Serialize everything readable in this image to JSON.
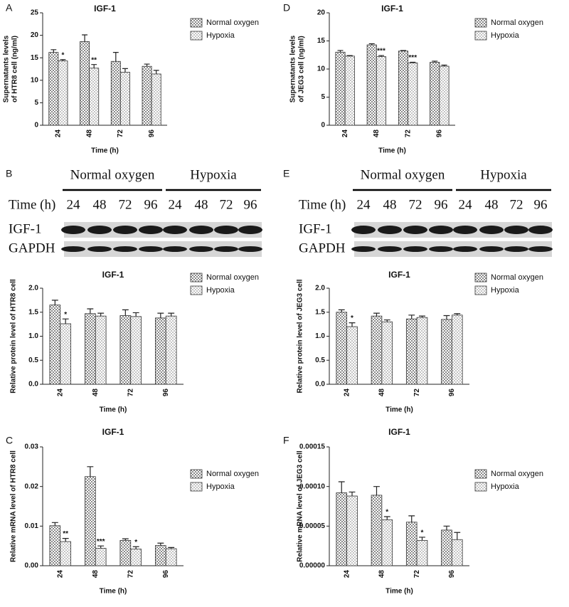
{
  "chart_data": [
    {
      "type": "bar",
      "label": "A",
      "title": "IGF-1",
      "ylabel": [
        "Supernatants levels",
        "of HTR8 cell (ng/ml)"
      ],
      "xlabel": "Time (h)",
      "categories": [
        "24",
        "48",
        "72",
        "96"
      ],
      "ylim": [
        0,
        25
      ],
      "yticks": [
        0,
        5,
        10,
        15,
        20,
        25
      ],
      "series": [
        {
          "name": "Normal oxygen",
          "color": "#8a8a8a",
          "values": [
            16.2,
            18.6,
            14.2,
            13.1
          ],
          "errors": [
            0.6,
            1.5,
            2.0,
            0.5
          ],
          "markers": [
            null,
            null,
            null,
            null
          ]
        },
        {
          "name": "Hypoxia",
          "color": "#c4c4c4",
          "values": [
            14.3,
            12.7,
            11.8,
            11.4
          ],
          "errors": [
            0.3,
            0.8,
            0.8,
            0.8
          ],
          "markers": [
            "*",
            "**",
            null,
            null
          ]
        }
      ]
    },
    {
      "type": "bar",
      "label": "D",
      "title": "IGF-1",
      "ylabel": [
        "Supernatants levels",
        "of JEG3 cell (ng/ml)"
      ],
      "xlabel": "Time (h)",
      "categories": [
        "24",
        "48",
        "72",
        "96"
      ],
      "ylim": [
        0,
        20
      ],
      "yticks": [
        0,
        5,
        10,
        15,
        20
      ],
      "series": [
        {
          "name": "Normal oxygen",
          "color": "#8a8a8a",
          "values": [
            13.0,
            14.3,
            13.2,
            11.2
          ],
          "errors": [
            0.3,
            0.2,
            0.1,
            0.2
          ],
          "markers": [
            null,
            null,
            null,
            null
          ]
        },
        {
          "name": "Hypoxia",
          "color": "#c4c4c4",
          "values": [
            12.3,
            12.2,
            11.1,
            10.5
          ],
          "errors": [
            0.1,
            0.2,
            0.1,
            0.2
          ],
          "markers": [
            null,
            "***",
            "***",
            null
          ]
        }
      ]
    },
    {
      "type": "bar",
      "title": "IGF-1",
      "ylabel": [
        "Relative protein level of HTR8 cell"
      ],
      "xlabel": "Time (h)",
      "categories": [
        "24",
        "48",
        "72",
        "96"
      ],
      "ylim": [
        0,
        2
      ],
      "yticks": [
        {
          "value": 0,
          "label": "0.0"
        },
        0.5,
        {
          "value": 1,
          "label": "1.0"
        },
        1.5,
        {
          "value": 2,
          "label": "2.0"
        }
      ],
      "series": [
        {
          "name": "Normal oxygen",
          "color": "#8a8a8a",
          "values": [
            1.65,
            1.47,
            1.43,
            1.38
          ],
          "errors": [
            0.1,
            0.1,
            0.12,
            0.1
          ],
          "markers": [
            null,
            null,
            null,
            null
          ]
        },
        {
          "name": "Hypoxia",
          "color": "#c4c4c4",
          "values": [
            1.26,
            1.42,
            1.41,
            1.42
          ],
          "errors": [
            0.1,
            0.06,
            0.08,
            0.06
          ],
          "markers": [
            "*",
            null,
            null,
            null
          ]
        }
      ]
    },
    {
      "type": "bar",
      "title": "IGF-1",
      "ylabel": [
        "Relative protein level of JEG3 cell"
      ],
      "xlabel": "Time (h)",
      "categories": [
        "24",
        "48",
        "72",
        "96"
      ],
      "ylim": [
        0,
        2
      ],
      "yticks": [
        {
          "value": 0,
          "label": "0.0"
        },
        0.5,
        {
          "value": 1,
          "label": "1.0"
        },
        1.5,
        {
          "value": 2,
          "label": "2.0"
        }
      ],
      "series": [
        {
          "name": "Normal oxygen",
          "color": "#8a8a8a",
          "values": [
            1.5,
            1.42,
            1.36,
            1.35
          ],
          "errors": [
            0.05,
            0.06,
            0.08,
            0.08
          ],
          "markers": [
            null,
            null,
            null,
            null
          ]
        },
        {
          "name": "Hypoxia",
          "color": "#c4c4c4",
          "values": [
            1.2,
            1.3,
            1.39,
            1.44
          ],
          "errors": [
            0.08,
            0.04,
            0.03,
            0.03
          ],
          "markers": [
            "*",
            null,
            null,
            null
          ]
        }
      ]
    },
    {
      "type": "bar",
      "label": "C",
      "title": "IGF-1",
      "ylabel": [
        "Relative mRNA level of HTR8 cell"
      ],
      "xlabel": "Time (h)",
      "categories": [
        "24",
        "48",
        "72",
        "96"
      ],
      "ylim": [
        0,
        0.03
      ],
      "yticks": [
        {
          "value": 0,
          "label": "0.00"
        },
        0.01,
        0.02,
        0.03
      ],
      "series": [
        {
          "name": "Normal oxygen",
          "color": "#8a8a8a",
          "values": [
            0.0101,
            0.0225,
            0.0064,
            0.0051
          ],
          "errors": [
            0.0008,
            0.0025,
            0.0004,
            0.0006
          ],
          "markers": [
            null,
            null,
            null,
            null
          ]
        },
        {
          "name": "Hypoxia",
          "color": "#c4c4c4",
          "values": [
            0.0061,
            0.0044,
            0.0042,
            0.0043
          ],
          "errors": [
            0.0008,
            0.0006,
            0.0006,
            0.0003
          ],
          "markers": [
            "**",
            "***",
            "*",
            null
          ]
        }
      ]
    },
    {
      "type": "bar",
      "label": "F",
      "title": "IGF-1",
      "ylabel": [
        "Relative mRNA level of JEG3 cell"
      ],
      "xlabel": "Time (h)",
      "categories": [
        "24",
        "48",
        "72",
        "96"
      ],
      "ylim": [
        0,
        0.00015
      ],
      "yticks": [
        {
          "value": 0,
          "label": "0.00000"
        },
        {
          "value": 5e-05,
          "label": "0.00005"
        },
        {
          "value": 0.0001,
          "label": "0.00010"
        },
        {
          "value": 0.00015,
          "label": "0.00015"
        }
      ],
      "series": [
        {
          "name": "Normal oxygen",
          "color": "#8a8a8a",
          "values": [
            9.2e-05,
            8.9e-05,
            5.5e-05,
            4.5e-05
          ],
          "errors": [
            1.4e-05,
            1.1e-05,
            8e-06,
            5e-06
          ],
          "markers": [
            null,
            null,
            null,
            null
          ]
        },
        {
          "name": "Hypoxia",
          "color": "#c4c4c4",
          "values": [
            8.8e-05,
            5.8e-05,
            3.2e-05,
            3.3e-05
          ],
          "errors": [
            5e-06,
            4e-06,
            4e-06,
            9e-06
          ],
          "markers": [
            null,
            "*",
            "*",
            null
          ]
        }
      ]
    }
  ],
  "blots": [
    {
      "label": "B",
      "groups": [
        "Normal oxygen",
        "Hypoxia"
      ],
      "row_label": "Time (h)",
      "times": [
        "24",
        "48",
        "72",
        "96",
        "24",
        "48",
        "72",
        "96"
      ],
      "bands": [
        "IGF-1",
        "GAPDH"
      ]
    },
    {
      "label": "E",
      "groups": [
        "Normal oxygen",
        "Hypoxia"
      ],
      "row_label": "Time (h)",
      "times": [
        "24",
        "48",
        "72",
        "96",
        "24",
        "48",
        "72",
        "96"
      ],
      "bands": [
        "IGF-1",
        "GAPDH"
      ]
    }
  ]
}
